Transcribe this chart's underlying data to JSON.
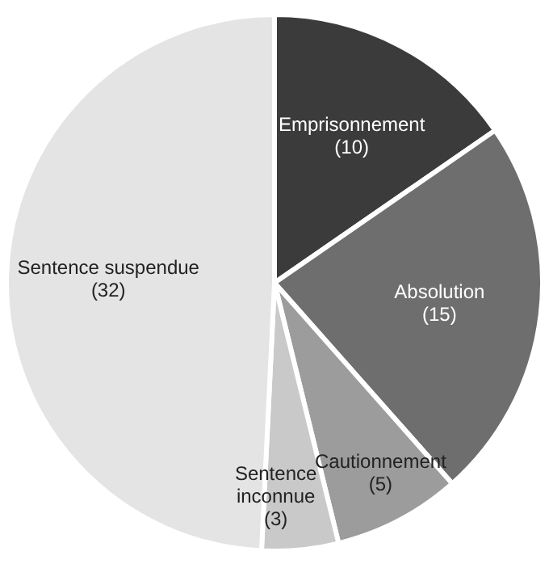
{
  "chart_data": {
    "type": "pie",
    "categories": [
      "Emprisonnement",
      "Absolution",
      "Cautionnement",
      "Sentence inconnue",
      "Sentence suspendue"
    ],
    "values": [
      10,
      15,
      5,
      3,
      32
    ],
    "colors": [
      "#3b3b3b",
      "#6e6e6e",
      "#9c9c9c",
      "#c9c9c9",
      "#e4e4e4"
    ],
    "value_labels": [
      "(10)",
      "(15)",
      "(5)",
      "(3)",
      "(32)"
    ],
    "legend": false
  }
}
